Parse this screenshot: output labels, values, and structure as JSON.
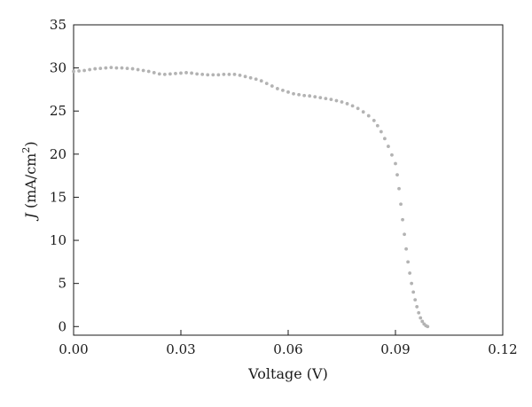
{
  "chart_data": {
    "type": "scatter",
    "title": "",
    "xlabel": "Voltage (V)",
    "ylabel": {
      "symbol": "J",
      "unit_prefix": "(mA/cm",
      "unit_exponent": "2",
      "unit_suffix": ")"
    },
    "xlim": [
      0,
      0.12
    ],
    "ylim": [
      -1,
      35
    ],
    "x_ticks": [
      0.0,
      0.03,
      0.06,
      0.09,
      0.12
    ],
    "x_tick_labels": [
      "0.00",
      "0.03",
      "0.06",
      "0.09",
      "0.12"
    ],
    "y_ticks": [
      0,
      5,
      10,
      15,
      20,
      25,
      30,
      35
    ],
    "y_tick_labels": [
      "0",
      "5",
      "10",
      "15",
      "20",
      "25",
      "30",
      "35"
    ],
    "grid": false,
    "legend": "none",
    "marker_color": "#b3b3b3",
    "series": [
      {
        "x": [
          0.0,
          0.0015,
          0.003,
          0.0045,
          0.006,
          0.0075,
          0.009,
          0.0105,
          0.012,
          0.0135,
          0.015,
          0.0165,
          0.018,
          0.0195,
          0.021,
          0.0225,
          0.024,
          0.0255,
          0.027,
          0.0285,
          0.03,
          0.0315,
          0.033,
          0.0345,
          0.036,
          0.0375,
          0.039,
          0.0405,
          0.042,
          0.0435,
          0.045,
          0.0465,
          0.048,
          0.0495,
          0.051,
          0.0525,
          0.054,
          0.0555,
          0.057,
          0.0585,
          0.06,
          0.0615,
          0.063,
          0.0645,
          0.066,
          0.0675,
          0.069,
          0.0705,
          0.072,
          0.0735,
          0.075,
          0.0765,
          0.078,
          0.0795,
          0.081,
          0.0825,
          0.084,
          0.085,
          0.086,
          0.087,
          0.088,
          0.089,
          0.09,
          0.0905,
          0.091,
          0.0915,
          0.092,
          0.0925,
          0.093,
          0.0935,
          0.094,
          0.0945,
          0.095,
          0.0955,
          0.096,
          0.0965,
          0.097,
          0.0975,
          0.098,
          0.0985,
          0.099
        ],
        "y": [
          29.6,
          29.65,
          29.7,
          29.8,
          29.9,
          29.95,
          30.0,
          30.05,
          30.0,
          30.0,
          29.95,
          29.9,
          29.8,
          29.7,
          29.6,
          29.45,
          29.3,
          29.25,
          29.3,
          29.35,
          29.4,
          29.45,
          29.4,
          29.3,
          29.25,
          29.2,
          29.2,
          29.2,
          29.25,
          29.25,
          29.25,
          29.15,
          29.0,
          28.85,
          28.7,
          28.5,
          28.2,
          27.9,
          27.6,
          27.4,
          27.2,
          27.0,
          26.9,
          26.8,
          26.75,
          26.65,
          26.55,
          26.45,
          26.35,
          26.2,
          26.05,
          25.85,
          25.6,
          25.3,
          24.9,
          24.45,
          23.9,
          23.3,
          22.6,
          21.8,
          20.9,
          19.9,
          18.9,
          17.6,
          16.0,
          14.2,
          12.4,
          10.7,
          9.0,
          7.5,
          6.2,
          5.0,
          4.0,
          3.1,
          2.3,
          1.6,
          1.0,
          0.6,
          0.3,
          0.1,
          0.0
        ]
      }
    ]
  }
}
